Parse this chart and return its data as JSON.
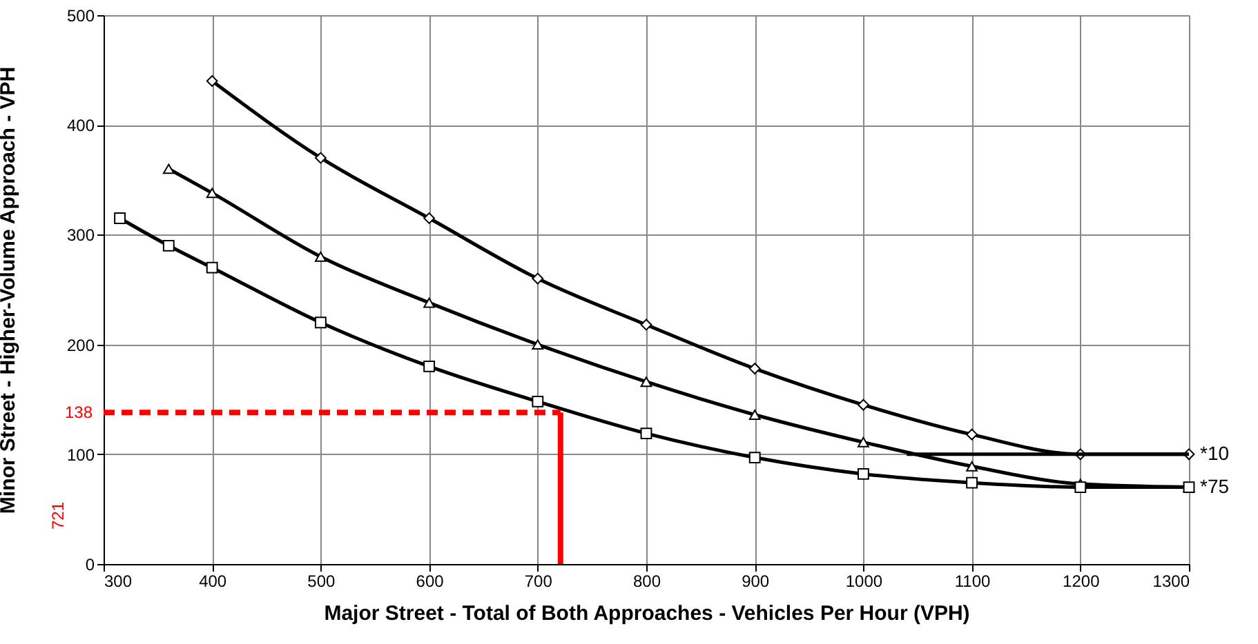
{
  "chart_data": {
    "type": "line",
    "xlabel": "Major Street - Total of Both Approaches - Vehicles Per Hour (VPH)",
    "ylabel": "Minor Street - Higher-Volume Approach - VPH",
    "xlim": [
      300,
      1300
    ],
    "xticks": [
      300,
      400,
      500,
      600,
      700,
      800,
      900,
      1000,
      1100,
      1200,
      1300
    ],
    "ylim": [
      0,
      500
    ],
    "yticks": [
      0,
      100,
      200,
      300,
      400,
      500
    ],
    "grid": true,
    "series": [
      {
        "color": "#000000",
        "marker": "diamond",
        "x": [
          400,
          500,
          600,
          700,
          800,
          900,
          1000,
          1100,
          1200,
          1300
        ],
        "values": [
          440,
          370,
          315,
          260,
          218,
          178,
          145,
          118,
          100,
          100
        ]
      },
      {
        "color": "#000000",
        "marker": "triangle",
        "x": [
          360,
          400,
          500,
          600,
          700,
          800,
          900,
          1000,
          1100,
          1200,
          1300
        ],
        "values": [
          360,
          338,
          280,
          238,
          200,
          166,
          136,
          111,
          89,
          73,
          70
        ]
      },
      {
        "color": "#000000",
        "marker": "square",
        "x": [
          315,
          360,
          400,
          500,
          600,
          700,
          800,
          900,
          1000,
          1100,
          1200,
          1300
        ],
        "values": [
          315,
          290,
          270,
          220,
          180,
          148,
          119,
          97,
          82,
          74,
          70,
          70
        ]
      },
      {
        "color": "#000000",
        "marker": "none",
        "x": [
          1040,
          1300
        ],
        "values": [
          100,
          100
        ]
      },
      {
        "color": "#ff0000",
        "marker": "none",
        "line_style": "dashed",
        "x": [
          300,
          721
        ],
        "values": [
          138,
          138
        ]
      },
      {
        "color": "#ff0000",
        "marker": "none",
        "line_style": "solid",
        "x": [
          721,
          721
        ],
        "values": [
          0,
          138
        ]
      }
    ],
    "annotations": [
      {
        "text": "*10",
        "x": 1300,
        "y": 100
      },
      {
        "text": "*75",
        "x": 1300,
        "y": 70
      },
      "138",
      "721"
    ]
  }
}
